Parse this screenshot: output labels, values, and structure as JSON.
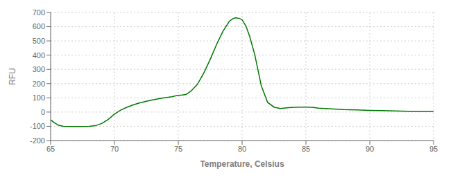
{
  "chart_data": {
    "type": "line",
    "xlabel": "Temperature, Celsius",
    "ylabel": "RFU",
    "x": [
      65.0,
      65.3,
      65.6,
      66.0,
      66.5,
      67.0,
      67.5,
      68.0,
      68.5,
      69.0,
      69.5,
      70.0,
      70.5,
      71.0,
      71.5,
      72.0,
      72.5,
      73.0,
      73.5,
      74.0,
      74.5,
      75.0,
      75.3,
      75.6,
      76.0,
      76.5,
      77.0,
      77.5,
      78.0,
      78.5,
      79.0,
      79.3,
      79.5,
      79.8,
      80.0,
      80.3,
      80.6,
      81.0,
      81.5,
      82.0,
      82.5,
      83.0,
      83.5,
      84.0,
      84.5,
      85.0,
      85.5,
      86.0,
      87.0,
      88.0,
      89.0,
      90.0,
      91.0,
      92.0,
      93.0,
      94.0,
      95.0
    ],
    "values": [
      -55,
      -75,
      -92,
      -100,
      -102,
      -102,
      -101,
      -100,
      -96,
      -80,
      -52,
      -15,
      15,
      35,
      52,
      65,
      76,
      86,
      94,
      102,
      108,
      118,
      120,
      123,
      148,
      195,
      275,
      370,
      475,
      568,
      638,
      658,
      662,
      658,
      648,
      605,
      530,
      400,
      185,
      68,
      35,
      25,
      30,
      33,
      35,
      35,
      33,
      28,
      23,
      18,
      15,
      12,
      10,
      8,
      6,
      4,
      4
    ],
    "color": "#007700",
    "xlim": [
      65,
      95
    ],
    "ylim": [
      -200,
      700
    ],
    "xticks": [
      65,
      70,
      75,
      80,
      85,
      90,
      95
    ],
    "yticks": [
      -200,
      -100,
      0,
      100,
      200,
      300,
      400,
      500,
      600,
      700
    ],
    "grid": true
  }
}
